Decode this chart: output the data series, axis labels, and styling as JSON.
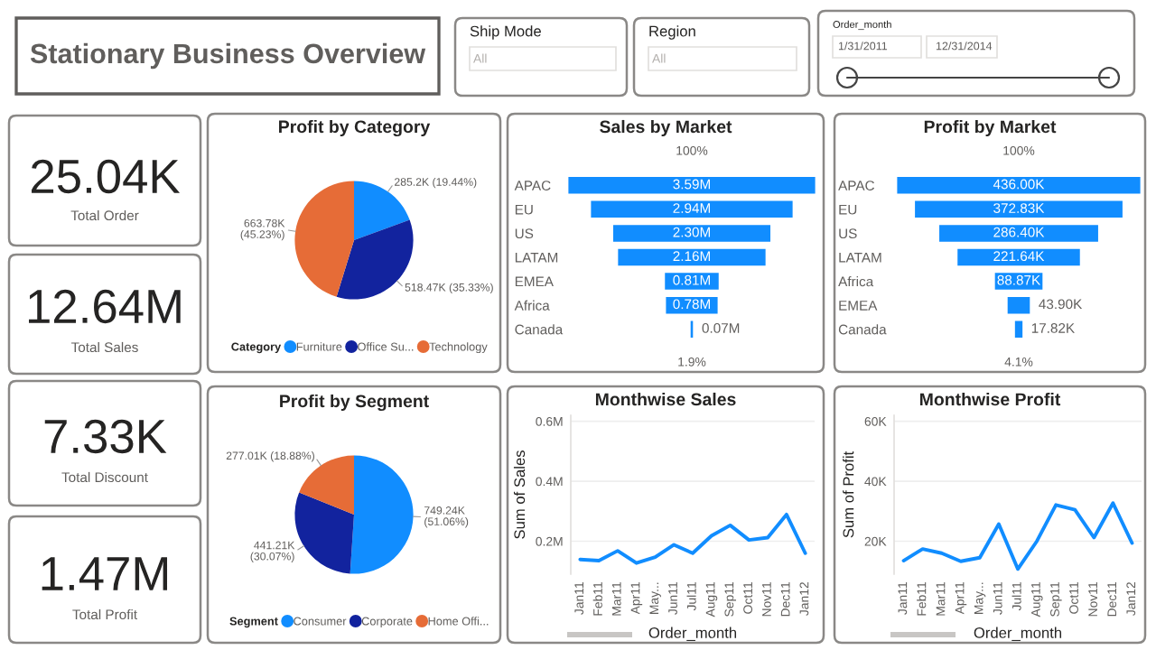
{
  "chart_data": [
    {
      "type": "other",
      "title": "Stationary Business Overview",
      "annotations": [
        "Ship Mode",
        "All",
        "Region",
        "All",
        "Order_month",
        "1/31/2011",
        "12/31/2014"
      ]
    },
    {
      "type": "other",
      "annotations": [
        "25.04K",
        "Total Order",
        "12.64M",
        "Total Sales",
        "7.33K",
        "Total Discount",
        "1.47M",
        "Total Profit"
      ]
    },
    {
      "type": "pie",
      "title": "Profit by Category",
      "legend_title": "Category",
      "legend": "bottom",
      "categories": [
        "Furniture",
        "Office Su...",
        "Technology"
      ],
      "values": [
        19.44,
        35.33,
        45.23
      ],
      "value_labels": [
        "285.2K (19.44%)",
        "518.47K (35.33%)",
        "663.78K\n(45.23%)"
      ],
      "colors": [
        "#118dff",
        "#12239e",
        "#e66c37"
      ]
    },
    {
      "type": "other",
      "title": "Sales by Market",
      "categories": [
        "APAC",
        "EU",
        "US",
        "LATAM",
        "EMEA",
        "Africa",
        "Canada"
      ],
      "values": [
        3.59,
        2.94,
        2.3,
        2.16,
        0.81,
        0.78,
        0.07
      ],
      "value_labels": [
        "3.59M",
        "2.94M",
        "2.30M",
        "2.16M",
        "0.81M",
        "0.78M",
        "0.07M"
      ],
      "color": "#118dff",
      "annotations": [
        "100%",
        "1.9%"
      ]
    },
    {
      "type": "other",
      "title": "Profit by Market",
      "categories": [
        "APAC",
        "EU",
        "US",
        "LATAM",
        "Africa",
        "EMEA",
        "Canada"
      ],
      "values": [
        436.0,
        372.83,
        286.4,
        221.64,
        88.87,
        43.9,
        17.82
      ],
      "value_labels": [
        "436.00K",
        "372.83K",
        "286.40K",
        "221.64K",
        "88.87K",
        "43.90K",
        "17.82K"
      ],
      "color": "#118dff",
      "annotations": [
        "100%",
        "4.1%"
      ]
    },
    {
      "type": "pie",
      "title": "Profit by Segment",
      "legend_title": "Segment",
      "legend": "bottom",
      "categories": [
        "Consumer",
        "Corporate",
        "Home Offi..."
      ],
      "values": [
        51.06,
        30.07,
        18.88
      ],
      "value_labels": [
        "749.24K\n(51.06%)",
        "441.21K\n(30.07%)",
        "277.01K (18.88%)"
      ],
      "colors": [
        "#118dff",
        "#12239e",
        "#e66c37"
      ]
    },
    {
      "type": "line",
      "title": "Monthwise Sales",
      "xlabel": "Order_month",
      "ylabel": "Sum of Sales",
      "categories": [
        "Jan11",
        "Feb11",
        "Mar11",
        "Apr11",
        "May...",
        "Jun11",
        "Jul11",
        "Aug11",
        "Sep11",
        "Oct11",
        "Nov11",
        "Dec11",
        "Jan12"
      ],
      "values": [
        0.139,
        0.135,
        0.168,
        0.127,
        0.147,
        0.188,
        0.16,
        0.218,
        0.253,
        0.204,
        0.212,
        0.289,
        0.16
      ],
      "color": "#118dff",
      "ylim": [
        0.09,
        0.62
      ],
      "yticks": [
        {
          "value": 0.2,
          "label": "0.2M"
        },
        {
          "value": 0.4,
          "label": "0.4M"
        },
        {
          "value": 0.6,
          "label": "0.6M"
        }
      ],
      "grid": "y",
      "marker": "none",
      "line_style": "solid"
    },
    {
      "type": "line",
      "title": "Monthwise Profit",
      "xlabel": "Order_month",
      "ylabel": "Sum of Profit",
      "categories": [
        "Jan11",
        "Feb11",
        "Mar11",
        "Apr11",
        "May...",
        "Jun11",
        "Jul11",
        "Aug11",
        "Sep11",
        "Oct11",
        "Nov11",
        "Dec11",
        "Jan12"
      ],
      "values": [
        13.5,
        17.4,
        16.0,
        13.3,
        14.5,
        25.7,
        10.7,
        20.0,
        32.1,
        30.5,
        21.2,
        32.7,
        19.4
      ],
      "color": "#118dff",
      "ylim": [
        9,
        62
      ],
      "yticks": [
        {
          "value": 20,
          "label": "20K"
        },
        {
          "value": 40,
          "label": "40K"
        },
        {
          "value": 60,
          "label": "60K"
        }
      ],
      "grid": "y",
      "marker": "none",
      "line_style": "solid"
    }
  ]
}
